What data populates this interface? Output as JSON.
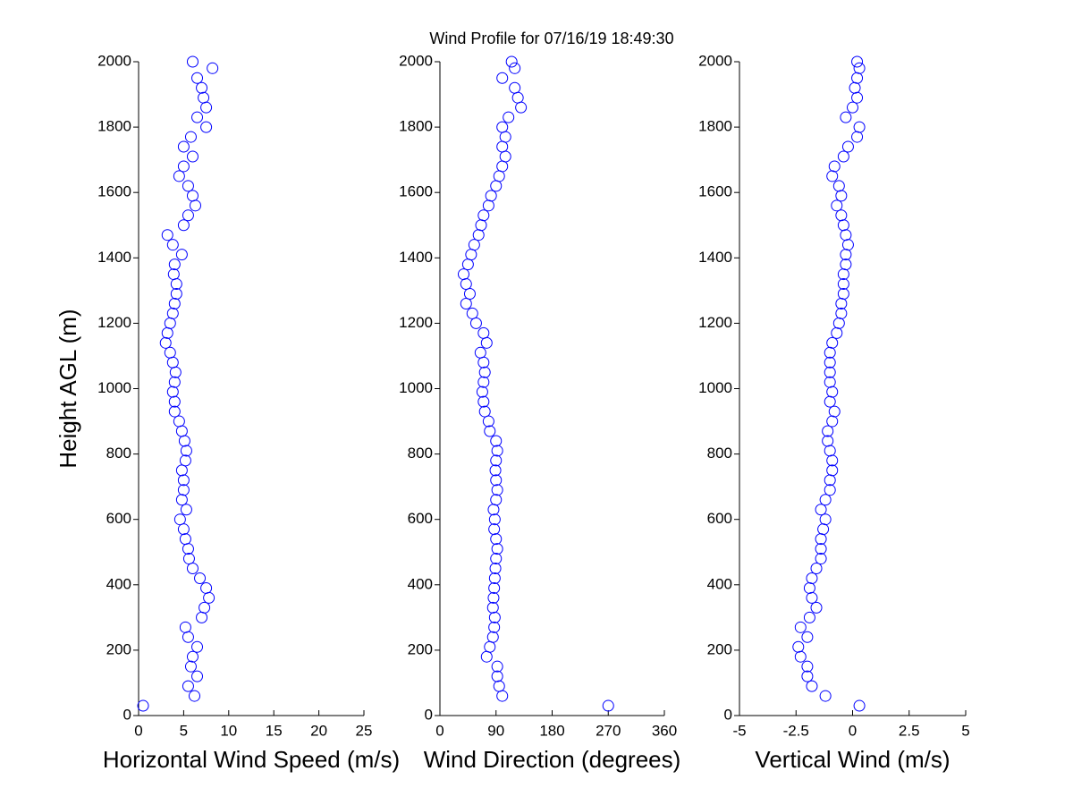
{
  "title": "Wind Profile for  07/16/19 18:49:30",
  "chart_data": [
    {
      "type": "scatter",
      "xlabel": "Horizontal Wind Speed (m/s)",
      "ylabel": "Height AGL (m)",
      "color": "#0000ff",
      "xlim": [
        0,
        25
      ],
      "xticks": [
        0,
        5,
        10,
        15,
        20,
        25
      ],
      "ylim": [
        0,
        2000
      ],
      "yticks": [
        0,
        200,
        400,
        600,
        800,
        1000,
        1200,
        1400,
        1600,
        1800,
        2000
      ],
      "x": [
        0.5,
        6.2,
        5.5,
        6.5,
        5.8,
        6.0,
        6.5,
        5.5,
        5.2,
        7.0,
        7.3,
        7.8,
        7.5,
        6.8,
        6.0,
        5.6,
        5.5,
        5.2,
        5.0,
        4.6,
        5.3,
        4.8,
        5.0,
        5.0,
        4.8,
        5.2,
        5.3,
        5.1,
        4.8,
        4.5,
        4.0,
        4.0,
        3.8,
        4.0,
        4.1,
        3.8,
        3.5,
        3.0,
        3.2,
        3.5,
        3.8,
        4.0,
        4.2,
        4.2,
        3.9,
        4.0,
        4.8,
        3.8,
        3.2,
        5.0,
        5.5,
        6.3,
        6.0,
        5.5,
        4.5,
        5.0,
        6.0,
        5.0,
        5.8,
        7.5,
        6.5,
        7.5,
        7.2,
        7.0,
        6.5,
        8.2,
        6.0
      ],
      "y": [
        30,
        60,
        90,
        120,
        150,
        180,
        210,
        240,
        270,
        300,
        330,
        360,
        390,
        420,
        450,
        480,
        510,
        540,
        570,
        600,
        630,
        660,
        690,
        720,
        750,
        780,
        810,
        840,
        870,
        900,
        930,
        960,
        990,
        1020,
        1050,
        1080,
        1110,
        1140,
        1170,
        1200,
        1230,
        1260,
        1290,
        1320,
        1350,
        1380,
        1410,
        1440,
        1470,
        1500,
        1530,
        1560,
        1590,
        1620,
        1650,
        1680,
        1710,
        1740,
        1770,
        1800,
        1830,
        1860,
        1890,
        1920,
        1950,
        1980,
        2000
      ]
    },
    {
      "type": "scatter",
      "xlabel": "Wind Direction (degrees)",
      "color": "#0000ff",
      "xlim": [
        0,
        360
      ],
      "xticks": [
        0,
        90,
        180,
        270,
        360
      ],
      "ylim": [
        0,
        2000
      ],
      "yticks": [
        0,
        200,
        400,
        600,
        800,
        1000,
        1200,
        1400,
        1600,
        1800,
        2000
      ],
      "x": [
        270,
        100,
        95,
        92,
        92,
        75,
        80,
        85,
        87,
        88,
        85,
        86,
        87,
        88,
        89,
        90,
        92,
        90,
        87,
        88,
        86,
        90,
        92,
        90,
        89,
        90,
        92,
        90,
        80,
        78,
        72,
        70,
        68,
        70,
        72,
        70,
        65,
        75,
        70,
        58,
        52,
        42,
        48,
        42,
        38,
        45,
        50,
        55,
        62,
        66,
        70,
        78,
        82,
        90,
        95,
        100,
        105,
        100,
        105,
        100,
        110,
        130,
        125,
        120,
        100,
        120,
        115
      ],
      "y": [
        30,
        60,
        90,
        120,
        150,
        180,
        210,
        240,
        270,
        300,
        330,
        360,
        390,
        420,
        450,
        480,
        510,
        540,
        570,
        600,
        630,
        660,
        690,
        720,
        750,
        780,
        810,
        840,
        870,
        900,
        930,
        960,
        990,
        1020,
        1050,
        1080,
        1110,
        1140,
        1170,
        1200,
        1230,
        1260,
        1290,
        1320,
        1350,
        1380,
        1410,
        1440,
        1470,
        1500,
        1530,
        1560,
        1590,
        1620,
        1650,
        1680,
        1710,
        1740,
        1770,
        1800,
        1830,
        1860,
        1890,
        1920,
        1950,
        1980,
        2000
      ]
    },
    {
      "type": "scatter",
      "xlabel": "Vertical Wind (m/s)",
      "color": "#0000ff",
      "xlim": [
        -5,
        5
      ],
      "xticks": [
        -5,
        -2.5,
        0,
        2.5,
        5
      ],
      "ylim": [
        0,
        2000
      ],
      "yticks": [
        0,
        200,
        400,
        600,
        800,
        1000,
        1200,
        1400,
        1600,
        1800,
        2000
      ],
      "x": [
        0.3,
        -1.2,
        -1.8,
        -2.0,
        -2.0,
        -2.3,
        -2.4,
        -2.0,
        -2.3,
        -1.9,
        -1.6,
        -1.8,
        -1.9,
        -1.8,
        -1.6,
        -1.4,
        -1.4,
        -1.4,
        -1.3,
        -1.2,
        -1.4,
        -1.2,
        -1.0,
        -1.0,
        -0.9,
        -0.9,
        -1.0,
        -1.1,
        -1.1,
        -0.9,
        -0.8,
        -1.0,
        -0.9,
        -1.0,
        -1.0,
        -1.0,
        -1.0,
        -0.9,
        -0.7,
        -0.6,
        -0.5,
        -0.5,
        -0.4,
        -0.4,
        -0.4,
        -0.3,
        -0.3,
        -0.2,
        -0.3,
        -0.4,
        -0.5,
        -0.7,
        -0.5,
        -0.6,
        -0.9,
        -0.8,
        -0.4,
        -0.2,
        0.2,
        0.3,
        -0.3,
        0.0,
        0.2,
        0.1,
        0.2,
        0.3,
        0.2
      ],
      "y": [
        30,
        60,
        90,
        120,
        150,
        180,
        210,
        240,
        270,
        300,
        330,
        360,
        390,
        420,
        450,
        480,
        510,
        540,
        570,
        600,
        630,
        660,
        690,
        720,
        750,
        780,
        810,
        840,
        870,
        900,
        930,
        960,
        990,
        1020,
        1050,
        1080,
        1110,
        1140,
        1170,
        1200,
        1230,
        1260,
        1290,
        1320,
        1350,
        1380,
        1410,
        1440,
        1470,
        1500,
        1530,
        1560,
        1590,
        1620,
        1650,
        1680,
        1710,
        1740,
        1770,
        1800,
        1830,
        1860,
        1890,
        1920,
        1950,
        1980,
        2000
      ]
    }
  ]
}
